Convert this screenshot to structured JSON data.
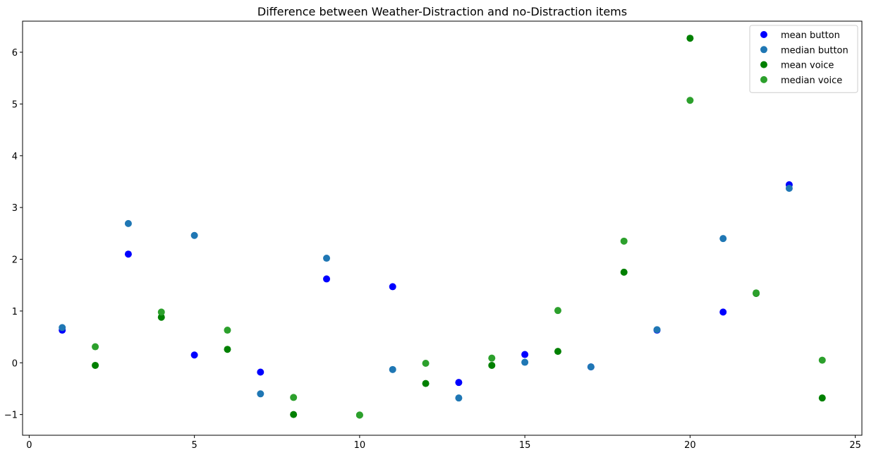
{
  "chart_data": {
    "type": "scatter",
    "title": "Difference between Weather-Distraction and no-Distraction items",
    "xlabel": "",
    "ylabel": "",
    "xlim": [
      -0.2,
      25.2
    ],
    "ylim": [
      -1.4,
      6.6
    ],
    "xticks": [
      0,
      5,
      10,
      15,
      20,
      25
    ],
    "yticks": [
      -1,
      0,
      1,
      2,
      3,
      4,
      5,
      6
    ],
    "legend_position": "top-right",
    "grid": false,
    "series": [
      {
        "name": "mean button",
        "color": "#0000ff",
        "points": [
          [
            1,
            0.63
          ],
          [
            3,
            2.1
          ],
          [
            5,
            0.15
          ],
          [
            7,
            -0.18
          ],
          [
            9,
            1.62
          ],
          [
            11,
            1.47
          ],
          [
            13,
            -0.38
          ],
          [
            15,
            0.16
          ],
          [
            17,
            -0.08
          ],
          [
            19,
            0.63
          ],
          [
            21,
            0.98
          ],
          [
            23,
            3.44
          ]
        ]
      },
      {
        "name": "median button",
        "color": "#1f77b4",
        "points": [
          [
            1,
            0.68
          ],
          [
            3,
            2.69
          ],
          [
            5,
            2.46
          ],
          [
            7,
            -0.6
          ],
          [
            9,
            2.02
          ],
          [
            11,
            -0.13
          ],
          [
            13,
            -0.68
          ],
          [
            15,
            0.01
          ],
          [
            17,
            -0.08
          ],
          [
            19,
            0.64
          ],
          [
            21,
            2.4
          ],
          [
            23,
            3.37
          ]
        ]
      },
      {
        "name": "mean voice",
        "color": "#008000",
        "points": [
          [
            2,
            -0.05
          ],
          [
            4,
            0.88
          ],
          [
            6,
            0.26
          ],
          [
            8,
            -1.0
          ],
          [
            10,
            -1.01
          ],
          [
            12,
            -0.4
          ],
          [
            14,
            -0.05
          ],
          [
            16,
            0.22
          ],
          [
            18,
            1.75
          ],
          [
            20,
            6.27
          ],
          [
            22,
            1.34
          ],
          [
            24,
            -0.68
          ]
        ]
      },
      {
        "name": "median voice",
        "color": "#2ca02c",
        "points": [
          [
            2,
            0.31
          ],
          [
            4,
            0.98
          ],
          [
            6,
            0.63
          ],
          [
            8,
            -0.67
          ],
          [
            10,
            -1.01
          ],
          [
            12,
            -0.01
          ],
          [
            14,
            0.09
          ],
          [
            16,
            1.01
          ],
          [
            18,
            2.35
          ],
          [
            20,
            5.07
          ],
          [
            22,
            1.35
          ],
          [
            24,
            0.05
          ]
        ]
      }
    ]
  }
}
